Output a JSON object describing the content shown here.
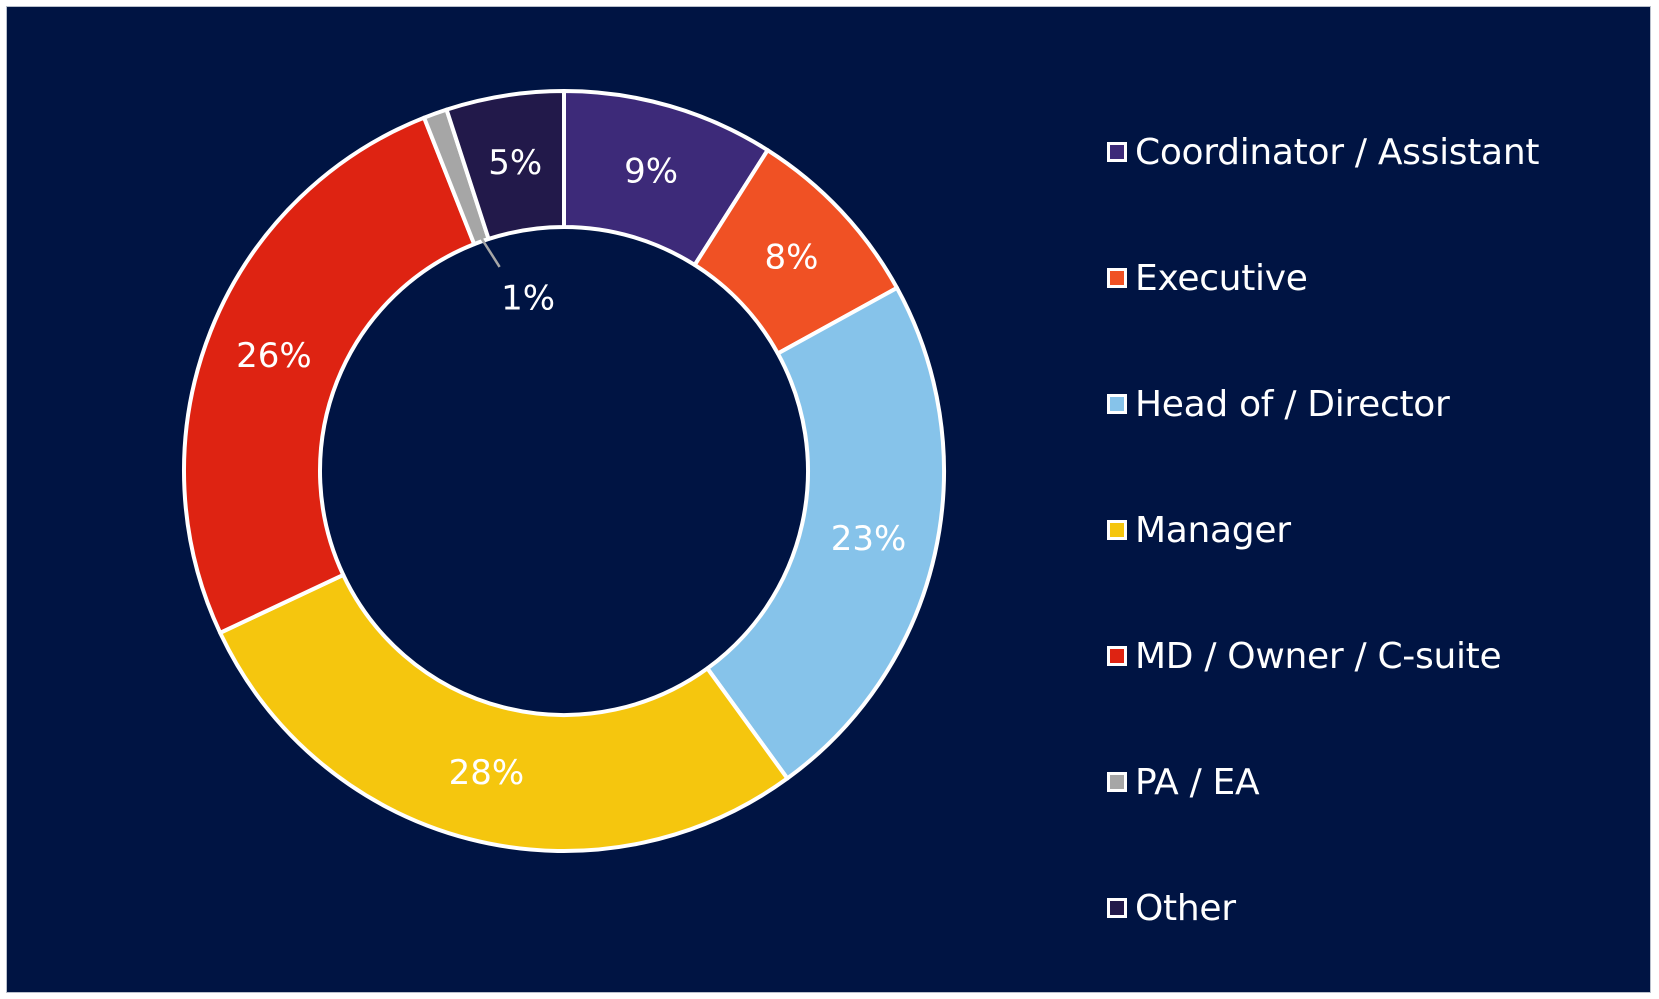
{
  "colors": {
    "background": "#001443",
    "border": "#ffffff",
    "label": "#ffffff",
    "leader": "#a6a6a6"
  },
  "chart_data": {
    "type": "pie",
    "variant": "donut",
    "legend_position": "right",
    "slices": [
      {
        "label": "Coordinator / Assistant",
        "value": 9,
        "display": "9%",
        "color": "#3d2a79"
      },
      {
        "label": "Executive",
        "value": 8,
        "display": "8%",
        "color": "#f05124"
      },
      {
        "label": "Head of / Director",
        "value": 23,
        "display": "23%",
        "color": "#86c3ea"
      },
      {
        "label": "Manager",
        "value": 28,
        "display": "28%",
        "color": "#f5c60e"
      },
      {
        "label": "MD / Owner / C-suite",
        "value": 26,
        "display": "26%",
        "color": "#de2312"
      },
      {
        "label": "PA / EA",
        "value": 1,
        "display": "1%",
        "color": "#a6a6a6"
      },
      {
        "label": "Other",
        "value": 5,
        "display": "5%",
        "color": "#22194a"
      }
    ]
  }
}
